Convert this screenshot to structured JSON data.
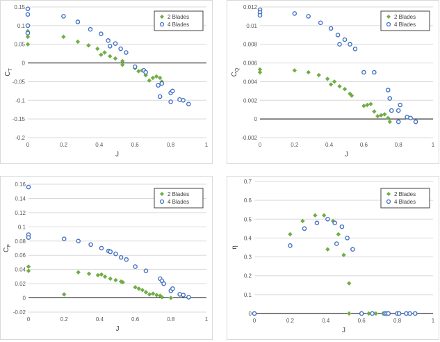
{
  "colors": {
    "green": "#70ad47",
    "blue": "#4472c4",
    "grid": "#d9d9d9",
    "axis": "#000000",
    "text": "#595959"
  },
  "chart_data": [
    {
      "type": "scatter",
      "xlabel": "J",
      "ylabel": "C",
      "ylabel_sub": "T",
      "xlim": [
        0,
        1
      ],
      "ylim": [
        -0.2,
        0.15
      ],
      "xticks": [
        "0",
        "0.2",
        "0.4",
        "0.6",
        "0.8",
        "1"
      ],
      "yticks": [
        "-0.2",
        "-0.15",
        "-0.1",
        "-0.05",
        "0",
        "0.05",
        "0.1",
        "0.15"
      ],
      "xtick_values": [
        0,
        0.2,
        0.4,
        0.6,
        0.8,
        1
      ],
      "ytick_values": [
        -0.2,
        -0.15,
        -0.1,
        -0.05,
        0,
        0.05,
        0.1,
        0.15
      ],
      "legend_position": "top-right",
      "series": [
        {
          "name": "2 Blades",
          "marker": "diamond",
          "color": "#70ad47",
          "points": [
            [
              0,
              0.085
            ],
            [
              0,
              0.07
            ],
            [
              0,
              0.05
            ],
            [
              0.2,
              0.07
            ],
            [
              0.28,
              0.057
            ],
            [
              0.34,
              0.047
            ],
            [
              0.39,
              0.038
            ],
            [
              0.41,
              0.022
            ],
            [
              0.43,
              0.028
            ],
            [
              0.46,
              0.018
            ],
            [
              0.49,
              0.012
            ],
            [
              0.53,
              0.005
            ],
            [
              0.53,
              -0.005
            ],
            [
              0.6,
              -0.014
            ],
            [
              0.62,
              -0.022
            ],
            [
              0.64,
              -0.02
            ],
            [
              0.66,
              -0.033
            ],
            [
              0.68,
              -0.047
            ],
            [
              0.7,
              -0.04
            ],
            [
              0.72,
              -0.036
            ],
            [
              0.74,
              -0.04
            ],
            [
              0.75,
              -0.05
            ]
          ]
        },
        {
          "name": "4 Blades",
          "marker": "circle",
          "color": "#4472c4",
          "points": [
            [
              0,
              0.145
            ],
            [
              0,
              0.13
            ],
            [
              0,
              0.1
            ],
            [
              0,
              0.08
            ],
            [
              0.2,
              0.125
            ],
            [
              0.28,
              0.11
            ],
            [
              0.35,
              0.09
            ],
            [
              0.41,
              0.078
            ],
            [
              0.45,
              0.06
            ],
            [
              0.46,
              0.045
            ],
            [
              0.49,
              0.052
            ],
            [
              0.52,
              0.038
            ],
            [
              0.55,
              0.028
            ],
            [
              0.6,
              -0.01
            ],
            [
              0.65,
              -0.02
            ],
            [
              0.66,
              -0.025
            ],
            [
              0.73,
              -0.06
            ],
            [
              0.74,
              -0.09
            ],
            [
              0.75,
              -0.055
            ],
            [
              0.8,
              -0.08
            ],
            [
              0.81,
              -0.075
            ],
            [
              0.8,
              -0.104
            ],
            [
              0.85,
              -0.098
            ],
            [
              0.87,
              -0.1
            ],
            [
              0.9,
              -0.11
            ]
          ]
        }
      ]
    },
    {
      "type": "scatter",
      "xlabel": "J",
      "ylabel": "C",
      "ylabel_sub": "Q",
      "xlim": [
        0,
        1
      ],
      "ylim": [
        -0.002,
        0.012
      ],
      "xticks": [
        "0",
        "0.2",
        "0.4",
        "0.6",
        "0.8",
        "1"
      ],
      "yticks": [
        "-0.002",
        "0",
        "0.002",
        "0.004",
        "0.006",
        "0.008",
        "0.01",
        "0.012"
      ],
      "xtick_values": [
        0,
        0.2,
        0.4,
        0.6,
        0.8,
        1
      ],
      "ytick_values": [
        -0.002,
        0,
        0.002,
        0.004,
        0.006,
        0.008,
        0.01,
        0.012
      ],
      "legend_position": "top-right",
      "series": [
        {
          "name": "2 Blades",
          "marker": "diamond",
          "color": "#70ad47",
          "points": [
            [
              0,
              0.0053
            ],
            [
              0,
              0.005
            ],
            [
              0.2,
              0.0052
            ],
            [
              0.28,
              0.005
            ],
            [
              0.34,
              0.0047
            ],
            [
              0.39,
              0.0043
            ],
            [
              0.41,
              0.0037
            ],
            [
              0.43,
              0.004
            ],
            [
              0.46,
              0.0035
            ],
            [
              0.49,
              0.0032
            ],
            [
              0.52,
              0.0027
            ],
            [
              0.53,
              0.0025
            ],
            [
              0.6,
              0.0014
            ],
            [
              0.62,
              0.0015
            ],
            [
              0.64,
              0.0016
            ],
            [
              0.66,
              0.0008
            ],
            [
              0.68,
              0.0003
            ],
            [
              0.7,
              0.0004
            ],
            [
              0.72,
              0.0005
            ],
            [
              0.74,
              0.0001
            ],
            [
              0.75,
              -0.0003
            ]
          ]
        },
        {
          "name": "4 Blades",
          "marker": "circle",
          "color": "#4472c4",
          "points": [
            [
              0,
              0.0117
            ],
            [
              0,
              0.0114
            ],
            [
              0,
              0.0111
            ],
            [
              0.2,
              0.0113
            ],
            [
              0.28,
              0.011
            ],
            [
              0.35,
              0.0103
            ],
            [
              0.41,
              0.0097
            ],
            [
              0.45,
              0.009
            ],
            [
              0.46,
              0.008
            ],
            [
              0.49,
              0.0085
            ],
            [
              0.52,
              0.008
            ],
            [
              0.55,
              0.0075
            ],
            [
              0.6,
              0.005
            ],
            [
              0.66,
              0.005
            ],
            [
              0.74,
              0.0031
            ],
            [
              0.75,
              0.0022
            ],
            [
              0.76,
              0.0009
            ],
            [
              0.8,
              0.0009
            ],
            [
              0.81,
              0.0015
            ],
            [
              0.8,
              -0.0003
            ],
            [
              0.85,
              0.0002
            ],
            [
              0.87,
              0.0001
            ],
            [
              0.9,
              -0.0003
            ]
          ]
        }
      ]
    },
    {
      "type": "scatter",
      "xlabel": "J",
      "ylabel": "C",
      "ylabel_sub": "P",
      "xlim": [
        0,
        1
      ],
      "ylim": [
        -0.02,
        0.16
      ],
      "xticks": [
        "0",
        "0.2",
        "0.4",
        "0.6",
        "0.8",
        "1"
      ],
      "yticks": [
        "-0.02",
        "0",
        "0.02",
        "0.04",
        "0.06",
        "0.08",
        "0.1",
        "0.12",
        "0.14",
        "0.16"
      ],
      "xtick_values": [
        0,
        0.2,
        0.4,
        0.6,
        0.8,
        1
      ],
      "ytick_values": [
        -0.02,
        0,
        0.02,
        0.04,
        0.06,
        0.08,
        0.1,
        0.12,
        0.14,
        0.16
      ],
      "legend_position": "right",
      "series": [
        {
          "name": "2 Blades",
          "marker": "diamond",
          "color": "#70ad47",
          "points": [
            [
              0,
              0.044
            ],
            [
              0,
              0.038
            ],
            [
              0.2,
              0.005
            ],
            [
              0.28,
              0.036
            ],
            [
              0.34,
              0.034
            ],
            [
              0.39,
              0.032
            ],
            [
              0.41,
              0.033
            ],
            [
              0.43,
              0.03
            ],
            [
              0.46,
              0.027
            ],
            [
              0.49,
              0.025
            ],
            [
              0.52,
              0.023
            ],
            [
              0.53,
              0.022
            ],
            [
              0.6,
              0.015
            ],
            [
              0.62,
              0.013
            ],
            [
              0.64,
              0.011
            ],
            [
              0.66,
              0.008
            ],
            [
              0.68,
              0.005
            ],
            [
              0.7,
              0.006
            ],
            [
              0.72,
              0.004
            ],
            [
              0.74,
              0.003
            ],
            [
              0.75,
              0.001
            ],
            [
              0.8,
              0
            ]
          ]
        },
        {
          "name": "4 Blades",
          "marker": "circle",
          "color": "#4472c4",
          "points": [
            [
              0,
              0.156
            ],
            [
              0,
              0.089
            ],
            [
              0,
              0.085
            ],
            [
              0.2,
              0.083
            ],
            [
              0.28,
              0.08
            ],
            [
              0.35,
              0.075
            ],
            [
              0.41,
              0.07
            ],
            [
              0.45,
              0.066
            ],
            [
              0.46,
              0.065
            ],
            [
              0.49,
              0.062
            ],
            [
              0.52,
              0.057
            ],
            [
              0.55,
              0.054
            ],
            [
              0.6,
              0.044
            ],
            [
              0.66,
              0.038
            ],
            [
              0.74,
              0.027
            ],
            [
              0.75,
              0.024
            ],
            [
              0.76,
              0.02
            ],
            [
              0.8,
              0.01
            ],
            [
              0.81,
              0.013
            ],
            [
              0.85,
              0.005
            ],
            [
              0.87,
              0.004
            ],
            [
              0.9,
              0.001
            ]
          ]
        }
      ]
    },
    {
      "type": "scatter",
      "xlabel": "J",
      "ylabel": "η",
      "ylabel_sub": "",
      "xlim": [
        0,
        1
      ],
      "ylim": [
        0,
        0.7
      ],
      "xticks": [
        "0",
        "0.2",
        "0.4",
        "0.6",
        "0.8",
        "1"
      ],
      "yticks": [
        "0",
        "0.1",
        "0.2",
        "0.3",
        "0.4",
        "0.5",
        "0.6",
        "0.7"
      ],
      "xtick_values": [
        0,
        0.2,
        0.4,
        0.6,
        0.8,
        1
      ],
      "ytick_values": [
        0,
        0.1,
        0.2,
        0.3,
        0.4,
        0.5,
        0.6,
        0.7
      ],
      "legend_position": "top-right",
      "series": [
        {
          "name": "2 Blades",
          "marker": "diamond",
          "color": "#70ad47",
          "points": [
            [
              0,
              0
            ],
            [
              0.2,
              0.42
            ],
            [
              0.27,
              0.49
            ],
            [
              0.34,
              0.52
            ],
            [
              0.39,
              0.52
            ],
            [
              0.41,
              0.34
            ],
            [
              0.44,
              0.49
            ],
            [
              0.47,
              0.42
            ],
            [
              0.5,
              0.31
            ],
            [
              0.53,
              0.16
            ],
            [
              0.53,
              0
            ],
            [
              0.6,
              0
            ],
            [
              0.64,
              0
            ],
            [
              0.68,
              0
            ],
            [
              0.72,
              0
            ],
            [
              0.75,
              0
            ]
          ]
        },
        {
          "name": "4 Blades",
          "marker": "circle",
          "color": "#4472c4",
          "points": [
            [
              0,
              0
            ],
            [
              0.2,
              0.36
            ],
            [
              0.28,
              0.45
            ],
            [
              0.35,
              0.48
            ],
            [
              0.41,
              0.5
            ],
            [
              0.45,
              0.48
            ],
            [
              0.46,
              0.37
            ],
            [
              0.49,
              0.46
            ],
            [
              0.52,
              0.4
            ],
            [
              0.55,
              0.34
            ],
            [
              0.6,
              0
            ],
            [
              0.66,
              0
            ],
            [
              0.73,
              0
            ],
            [
              0.74,
              0
            ],
            [
              0.75,
              0
            ],
            [
              0.8,
              0
            ],
            [
              0.81,
              0
            ],
            [
              0.85,
              0
            ],
            [
              0.87,
              0
            ],
            [
              0.9,
              0
            ]
          ]
        }
      ]
    }
  ]
}
